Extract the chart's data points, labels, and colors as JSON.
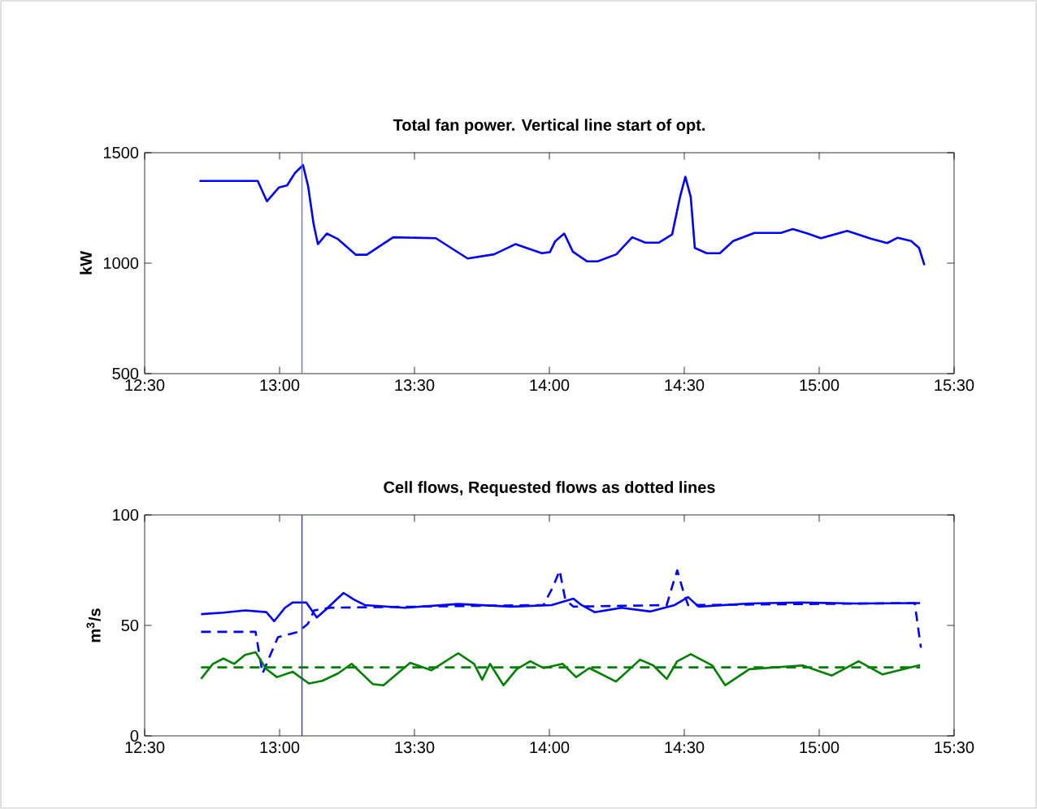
{
  "chart_data": [
    {
      "type": "line",
      "title": "Total fan power. Vertical line start of opt.",
      "ylabel": "kW",
      "xlim": [
        12.5,
        15.5
      ],
      "xticks": [
        {
          "value": 12.5,
          "label": "12:30"
        },
        {
          "value": 13,
          "label": "13:00"
        },
        {
          "value": 13.5,
          "label": "13:30"
        },
        {
          "value": 14,
          "label": "14:00"
        },
        {
          "value": 14.5,
          "label": "14:30"
        },
        {
          "value": 15,
          "label": "15:00"
        },
        {
          "value": 15.5,
          "label": "15:30"
        }
      ],
      "ylim": [
        500,
        1500
      ],
      "yticks": [
        500,
        1000,
        1500
      ],
      "ref_lines": [
        {
          "axis": "x",
          "value": 13.083,
          "color": "#6a6aff"
        }
      ],
      "series": [
        {
          "color": "#0000ff",
          "line_style": "solid",
          "x": [
            12.703,
            12.919,
            12.953,
            12.998,
            13.028,
            13.057,
            13.087,
            13.106,
            13.126,
            13.142,
            13.175,
            13.215,
            13.283,
            13.323,
            13.421,
            13.579,
            13.697,
            13.795,
            13.874,
            13.972,
            14.002,
            14.021,
            14.055,
            14.087,
            14.14,
            14.179,
            14.248,
            14.307,
            14.356,
            14.406,
            14.455,
            14.484,
            14.504,
            14.524,
            14.539,
            14.583,
            14.632,
            14.681,
            14.76,
            14.858,
            14.902,
            14.957,
            15.006,
            15.104,
            15.193,
            15.252,
            15.291,
            15.341,
            15.37,
            15.39
          ],
          "values": [
            1372,
            1372,
            1280,
            1343,
            1352,
            1408,
            1444,
            1347,
            1178,
            1086,
            1134,
            1110,
            1038,
            1038,
            1117,
            1113,
            1021,
            1040,
            1086,
            1045,
            1050,
            1098,
            1134,
            1052,
            1008,
            1008,
            1040,
            1117,
            1093,
            1093,
            1130,
            1299,
            1391,
            1299,
            1069,
            1045,
            1045,
            1100,
            1137,
            1137,
            1154,
            1134,
            1113,
            1146,
            1110,
            1091,
            1115,
            1100,
            1069,
            991
          ]
        }
      ]
    },
    {
      "type": "line",
      "title": "Cell flows, Requested flows as dotted lines",
      "ylabel": "m$^{3}$/s",
      "xlim": [
        12.5,
        15.5
      ],
      "xticks": [
        {
          "value": 12.5,
          "label": "12:30"
        },
        {
          "value": 13,
          "label": "13:00"
        },
        {
          "value": 13.5,
          "label": "13:30"
        },
        {
          "value": 14,
          "label": "14:00"
        },
        {
          "value": 14.5,
          "label": "14:30"
        },
        {
          "value": 15,
          "label": "15:00"
        },
        {
          "value": 15.5,
          "label": "15:30"
        }
      ],
      "ylim": [
        0,
        100
      ],
      "yticks": [
        0,
        50,
        100
      ],
      "ref_lines": [
        {
          "axis": "x",
          "value": 13.083,
          "color": "#3030ff"
        }
      ],
      "series": [
        {
          "color": "#0000ff",
          "line_style": "solid",
          "x": [
            12.709,
            12.792,
            12.872,
            12.951,
            12.98,
            13.02,
            13.049,
            13.099,
            13.138,
            13.168,
            13.237,
            13.277,
            13.316,
            13.464,
            13.662,
            13.86,
            14.008,
            14.089,
            14.119,
            14.168,
            14.267,
            14.375,
            14.464,
            14.514,
            14.553,
            14.741,
            14.929,
            15.136,
            15.374
          ],
          "values": [
            55.1,
            55.8,
            56.8,
            56.0,
            51.9,
            58.0,
            60.4,
            60.4,
            53.6,
            56.8,
            64.7,
            61.6,
            59.2,
            58.0,
            59.7,
            58.5,
            59.2,
            62.1,
            59.2,
            56.0,
            58.0,
            56.3,
            59.2,
            62.8,
            58.5,
            59.9,
            60.4,
            59.9,
            60.1
          ]
        },
        {
          "color": "#0000ff",
          "line_style": "dashed",
          "x": [
            12.709,
            12.911,
            12.937,
            12.96,
            12.994,
            13.069,
            13.105,
            13.128,
            13.188,
            13.978,
            14.014,
            14.038,
            14.059,
            14.089,
            14.435,
            14.455,
            14.474,
            14.494,
            14.514,
            15.354,
            15.377
          ],
          "values": [
            47.1,
            47.1,
            28.3,
            35.0,
            44.7,
            47.1,
            50.7,
            56.8,
            58.0,
            59.2,
            67.6,
            74.9,
            61.6,
            58.5,
            59.2,
            67.6,
            74.9,
            66.4,
            59.2,
            60.1,
            39.9
          ]
        },
        {
          "color": "#008000",
          "line_style": "solid",
          "x": [
            12.709,
            12.753,
            12.792,
            12.832,
            12.872,
            12.911,
            12.951,
            12.99,
            13.049,
            13.109,
            13.158,
            13.217,
            13.267,
            13.346,
            13.385,
            13.484,
            13.563,
            13.662,
            13.721,
            13.751,
            13.78,
            13.83,
            13.879,
            13.929,
            13.978,
            14.049,
            14.099,
            14.148,
            14.247,
            14.336,
            14.385,
            14.435,
            14.474,
            14.524,
            14.603,
            14.652,
            14.741,
            14.939,
            15.047,
            15.146,
            15.235,
            15.374
          ],
          "values": [
            25.8,
            32.6,
            35.0,
            32.6,
            36.7,
            37.9,
            30.2,
            26.6,
            29.0,
            23.7,
            24.9,
            28.3,
            32.6,
            23.4,
            22.9,
            33.1,
            29.7,
            37.4,
            32.6,
            25.4,
            32.6,
            22.9,
            30.2,
            33.8,
            30.7,
            32.6,
            26.6,
            30.7,
            24.6,
            34.5,
            31.9,
            25.8,
            33.8,
            37.0,
            31.9,
            22.9,
            30.2,
            31.9,
            27.3,
            33.8,
            27.8,
            32.1
          ]
        },
        {
          "color": "#008000",
          "line_style": "dashed",
          "x": [
            12.709,
            15.374
          ],
          "values": [
            31,
            31
          ]
        }
      ]
    }
  ]
}
